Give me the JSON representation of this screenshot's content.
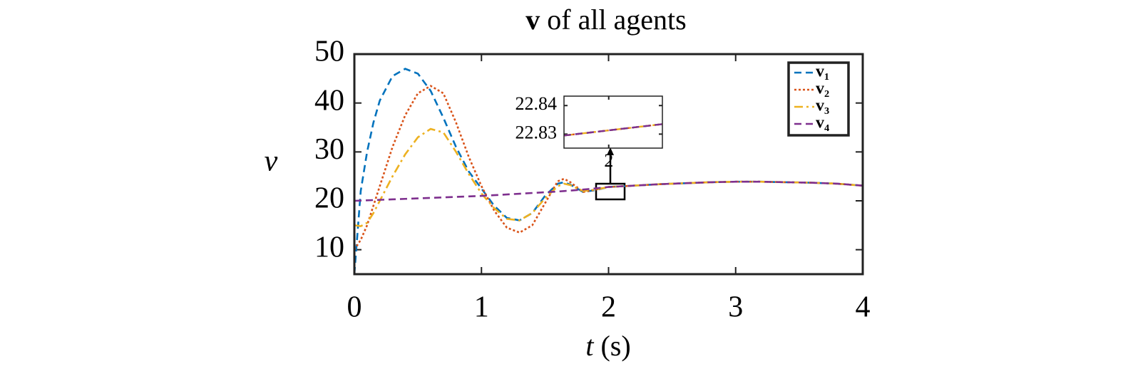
{
  "chart_data": {
    "type": "line",
    "title_symbol": "v",
    "title": "of all agents",
    "ylabel": "v",
    "xlabel_symbol": "t",
    "xlabel_unit": "(s)",
    "xlim": [
      0,
      4
    ],
    "ylim": [
      5,
      50
    ],
    "xticks": [
      0,
      1,
      2,
      3,
      4
    ],
    "yticks": [
      10,
      20,
      30,
      40,
      50
    ],
    "legend": "upper right",
    "x": [
      0,
      0.05,
      0.1,
      0.15,
      0.2,
      0.3,
      0.4,
      0.5,
      0.6,
      0.7,
      0.8,
      0.9,
      1.0,
      1.1,
      1.2,
      1.3,
      1.4,
      1.5,
      1.6,
      1.65,
      1.7,
      1.8,
      1.9,
      2.0,
      2.2,
      2.4,
      2.6,
      2.8,
      3.0,
      3.2,
      3.4,
      3.6,
      3.8,
      4.0
    ],
    "series": [
      {
        "name": "v₁",
        "color": "#0072BD",
        "dash": "dashed",
        "values": [
          5,
          22,
          30,
          36,
          40.5,
          45.5,
          47,
          46,
          42.5,
          37,
          31,
          26,
          22.5,
          19,
          16.5,
          16,
          17.5,
          21,
          23.5,
          23.8,
          23.3,
          21.8,
          22.2,
          22.83,
          23.1,
          23.4,
          23.6,
          23.8,
          23.9,
          23.9,
          23.8,
          23.7,
          23.5,
          23.1
        ]
      },
      {
        "name": "v₂",
        "color": "#D95319",
        "dash": "dotted",
        "values": [
          10,
          12,
          15,
          19,
          23,
          31,
          37.5,
          42,
          43.5,
          42,
          36,
          29,
          23,
          18,
          14.5,
          13.5,
          15,
          19.5,
          24,
          24.5,
          23.8,
          21.8,
          22.3,
          22.83,
          23.1,
          23.4,
          23.6,
          23.8,
          23.9,
          23.9,
          23.8,
          23.7,
          23.5,
          23.1
        ]
      },
      {
        "name": "v₃",
        "color": "#EDB120",
        "dash": "dashdot",
        "values": [
          15,
          14.8,
          15.5,
          17.5,
          20,
          25,
          29.5,
          33,
          34.7,
          34,
          30,
          25.5,
          21.5,
          18.5,
          16.3,
          16,
          17.5,
          20.5,
          23,
          23.5,
          23.2,
          22,
          22.3,
          22.83,
          23.1,
          23.4,
          23.6,
          23.8,
          23.9,
          23.9,
          23.8,
          23.7,
          23.5,
          23.1
        ]
      },
      {
        "name": "v₄",
        "color": "#7E2F8E",
        "dash": "dashed",
        "values": [
          20,
          20.05,
          20.1,
          20.15,
          20.2,
          20.3,
          20.4,
          20.5,
          20.6,
          20.7,
          20.8,
          20.9,
          21,
          21.15,
          21.3,
          21.45,
          21.6,
          21.75,
          21.9,
          22,
          22.1,
          22.3,
          22.55,
          22.83,
          23.1,
          23.4,
          23.6,
          23.8,
          23.9,
          23.9,
          23.8,
          23.7,
          23.5,
          23.1
        ]
      }
    ],
    "inset": {
      "xlim": [
        1.9,
        2.12
      ],
      "ylim": [
        22.8251,
        22.8433
      ],
      "xticks": [
        2
      ],
      "yticks": [
        22.83,
        22.84
      ],
      "x": [
        1.9,
        2.12
      ],
      "series": [
        {
          "values": [
            22.8295,
            22.8335
          ]
        },
        {
          "values": [
            22.8295,
            22.8335
          ]
        },
        {
          "values": [
            22.8295,
            22.8335
          ]
        },
        {
          "values": [
            22.8295,
            22.8335
          ]
        }
      ]
    }
  }
}
